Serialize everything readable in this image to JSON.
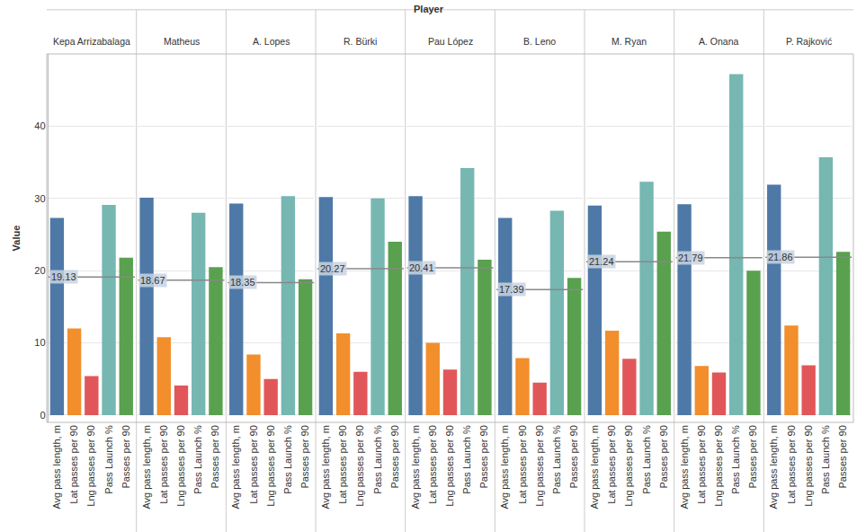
{
  "chart_data": {
    "type": "bar",
    "title": "Player",
    "y_label": "Value",
    "categories": [
      "Avg pass length, m",
      "Lat passes per 90",
      "Lng passes per 90",
      "Pass Launch %",
      "Passes per 90"
    ],
    "colors": [
      "#4e79a7",
      "#f28e2b",
      "#e15759",
      "#76b7b2",
      "#59a14f"
    ],
    "ylim": [
      -1,
      50
    ],
    "yticks": [
      0,
      10,
      20,
      30,
      40
    ],
    "grid": true,
    "panels": [
      {
        "title": "Kepa Arrizabalaga",
        "values": [
          27.3,
          12.0,
          5.4,
          29.1,
          21.8
        ],
        "reference_line": 19.13
      },
      {
        "title": "Matheus",
        "values": [
          30.1,
          10.8,
          4.1,
          28.0,
          20.5
        ],
        "reference_line": 18.67
      },
      {
        "title": "A. Lopes",
        "values": [
          29.3,
          8.4,
          5.0,
          30.3,
          18.8
        ],
        "reference_line": 18.35
      },
      {
        "title": "R. Bürki",
        "values": [
          30.2,
          11.3,
          6.0,
          30.0,
          24.0
        ],
        "reference_line": 20.27
      },
      {
        "title": "Pau López",
        "values": [
          30.3,
          10.0,
          6.3,
          34.2,
          21.5
        ],
        "reference_line": 20.41
      },
      {
        "title": "B. Leno",
        "values": [
          27.3,
          7.9,
          4.5,
          28.3,
          19.0
        ],
        "reference_line": 17.39
      },
      {
        "title": "M. Ryan",
        "values": [
          29.0,
          11.7,
          7.8,
          32.3,
          25.4
        ],
        "reference_line": 21.24
      },
      {
        "title": "A. Onana",
        "values": [
          29.2,
          6.8,
          5.9,
          47.2,
          20.0
        ],
        "reference_line": 21.79
      },
      {
        "title": "P. Rajković",
        "values": [
          31.9,
          12.4,
          6.9,
          35.7,
          22.6
        ],
        "reference_line": 21.86
      }
    ]
  }
}
